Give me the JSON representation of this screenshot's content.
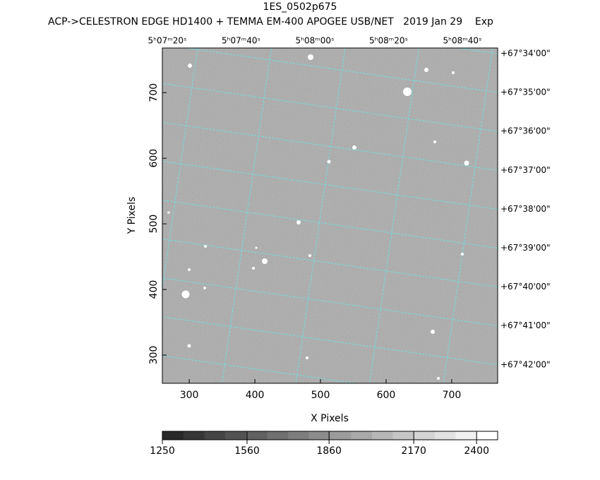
{
  "chart_data": {
    "type": "image",
    "title": "1ES_0502p675",
    "subtitle": "ACP->CELESTRON EDGE HD1400 + TEMMA EM-400 APOGEE USB/NET   2019 Jan 29    Exp",
    "x_label": "X Pixels",
    "y_label": "Y Pixels",
    "xlim": [
      259,
      770
    ],
    "ylim": [
      257,
      768
    ],
    "xticks": [
      300,
      400,
      500,
      600,
      700
    ],
    "yticks": [
      300,
      400,
      500,
      600,
      700
    ],
    "ra_labels": [
      "5ʰ07ᵐ20ˢ",
      "5ʰ07ᵐ40ˢ",
      "5ʰ08ᵐ00ˢ",
      "5ʰ08ᵐ20ˢ",
      "5ʰ08ᵐ40ˢ"
    ],
    "dec_labels": [
      "+67°34'00\"",
      "+67°35'00\"",
      "+67°36'00\"",
      "+67°37'00\"",
      "+67°38'00\"",
      "+67°39'00\"",
      "+67°40'00\"",
      "+67°41'00\"",
      "+67°42'00\""
    ],
    "colorbar_lim": [
      1250,
      2477
    ],
    "colorbar_ticks": [
      1250,
      1560,
      1860,
      2170,
      2400
    ]
  }
}
